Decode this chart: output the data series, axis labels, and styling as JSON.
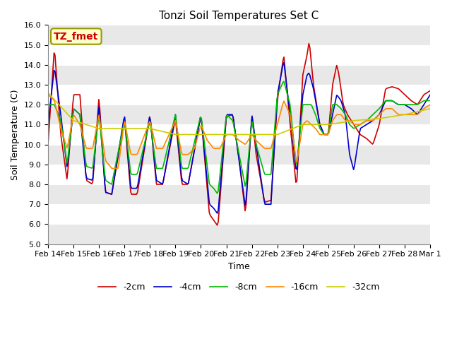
{
  "title": "Tonzi Soil Temperatures Set C",
  "xlabel": "Time",
  "ylabel": "Soil Temperature (C)",
  "ylim": [
    5.0,
    16.0
  ],
  "yticks": [
    5.0,
    6.0,
    7.0,
    8.0,
    9.0,
    10.0,
    11.0,
    12.0,
    13.0,
    14.0,
    15.0,
    16.0
  ],
  "series": {
    "-2cm": {
      "color": "#cc0000",
      "lw": 1.2
    },
    "-4cm": {
      "color": "#0000cc",
      "lw": 1.2
    },
    "-8cm": {
      "color": "#00bb00",
      "lw": 1.2
    },
    "-16cm": {
      "color": "#ff8800",
      "lw": 1.2
    },
    "-32cm": {
      "color": "#cccc00",
      "lw": 1.2
    }
  },
  "annotation_text": "TZ_fmet",
  "annotation_color": "#cc0000",
  "annotation_bg": "#ffffcc",
  "annotation_border": "#999900",
  "grid_color_light": "#ffffff",
  "grid_color_dark": "#dddddd",
  "n_points": 385,
  "x_tick_labels": [
    "Feb 14",
    "Feb 15",
    "Feb 16",
    "Feb 17",
    "Feb 18",
    "Feb 19",
    "Feb 20",
    "Feb 21",
    "Feb 22",
    "Feb 23",
    "Feb 24",
    "Feb 25",
    "Feb 26",
    "Feb 27",
    "Feb 28",
    "Mar 1"
  ],
  "x_tick_positions": [
    0,
    24,
    48,
    72,
    96,
    120,
    144,
    168,
    192,
    216,
    240,
    264,
    288,
    312,
    336,
    360
  ]
}
